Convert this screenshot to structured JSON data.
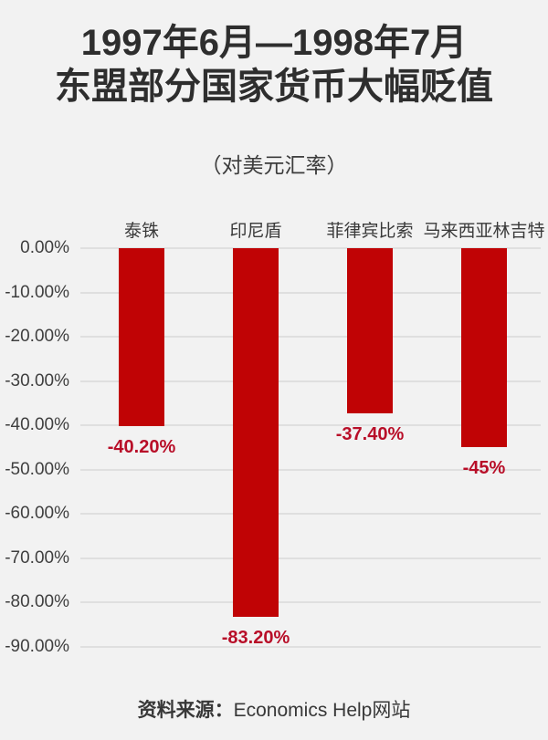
{
  "page": {
    "background_color": "#f2f2f2"
  },
  "header": {
    "title_line1": "1997年6月—1998年7月",
    "title_line2": "东盟部分国家货币大幅贬值",
    "subtitle": "（对美元汇率）"
  },
  "chart_data": {
    "type": "bar",
    "title": "1997年6月—1998年7月 东盟部分国家货币大幅贬值",
    "subtitle": "（对美元汇率）",
    "categories": [
      "泰铢",
      "印尼盾",
      "菲律宾比索",
      "马来西亚林吉特"
    ],
    "values": [
      -40.2,
      -83.2,
      -37.4,
      -45
    ],
    "value_labels": [
      "-40.20%",
      "-83.20%",
      "-37.40%",
      "-45%"
    ],
    "y_ticks": [
      "0.00%",
      "-10.00%",
      "-20.00%",
      "-30.00%",
      "-40.00%",
      "-50.00%",
      "-60.00%",
      "-70.00%",
      "-80.00%",
      "-90.00%"
    ],
    "ylim": [
      -90,
      0
    ],
    "xlabel": "",
    "ylabel": "",
    "grid": true,
    "legend": false,
    "bar_color": "#c00305",
    "value_label_color": "#b80e28",
    "gridline_color": "#dfdfdf",
    "source": "资料来源：Economics Help网站"
  },
  "footer": {
    "source_label": "资料来源：",
    "source_value": "Economics Help网站"
  }
}
